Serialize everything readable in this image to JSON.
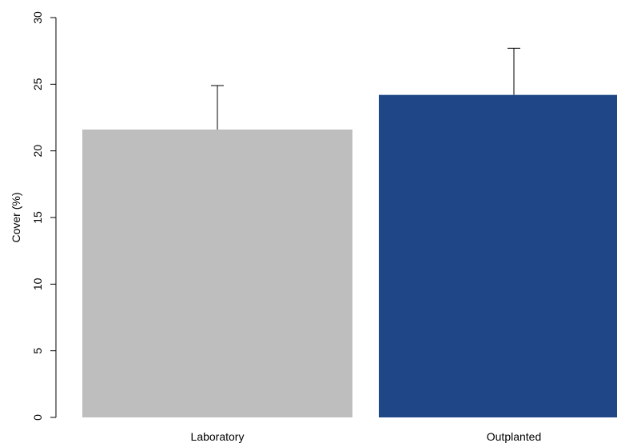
{
  "chart_data": {
    "type": "bar",
    "title": "",
    "xlabel": "",
    "ylabel": "Cover (%)",
    "ylim": [
      0,
      30
    ],
    "yticks": [
      0,
      5,
      10,
      15,
      20,
      25,
      30
    ],
    "grid": false,
    "legend": "none",
    "categories": [
      "Laboratory",
      "Outplanted"
    ],
    "values": [
      21.6,
      24.2
    ],
    "error_upper": [
      24.9,
      27.7
    ],
    "colors": [
      "#bebebe",
      "#1f4788"
    ]
  }
}
